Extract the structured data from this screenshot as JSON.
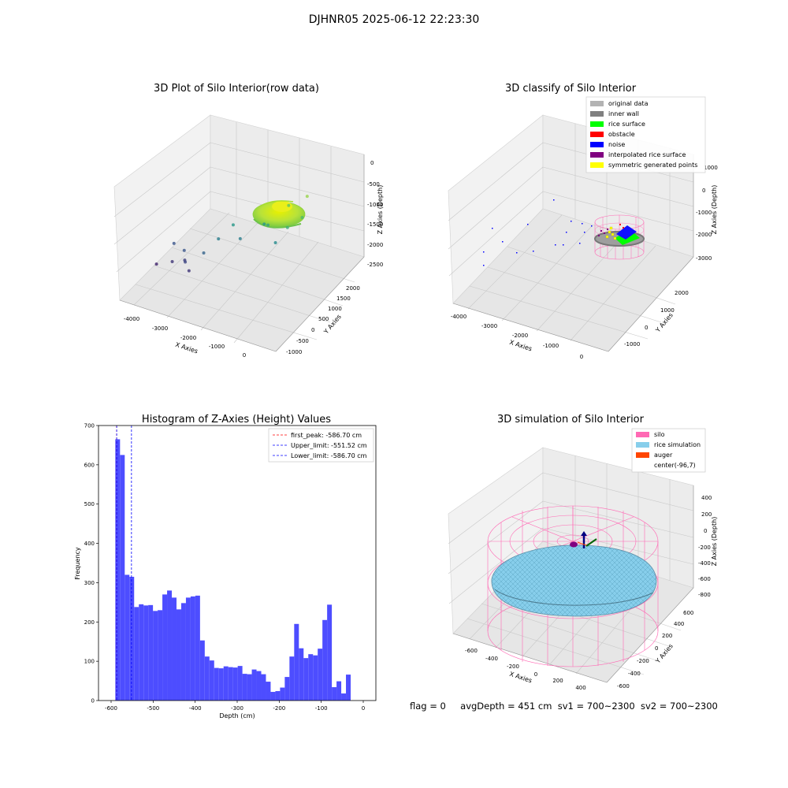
{
  "suptitle": "DJHNR05 2025-06-12 22:23:30",
  "footer": {
    "flag": "flag = 0",
    "avg_depth": "avgDepth = 451 cm",
    "sv1": "sv1 = 700~2300",
    "sv2": "sv2 = 700~2300"
  },
  "colors": {
    "hist_bar": "#4d4dff",
    "first_peak": "#ff0000",
    "limit_line": "#0000ff",
    "silo": "#ff69b4",
    "rice_sim": "#87ceeb",
    "auger": "#ff4500",
    "original": "#b3b3b3",
    "inner_wall": "#808080",
    "rice_surface": "#00ff00",
    "obstacle": "#ff0000",
    "noise": "#0000ff",
    "interpolated": "#800080",
    "symmetric": "#ffff00"
  },
  "chart_data": [
    {
      "type": "scatter",
      "title": "3D Plot of Silo Interior(row data)",
      "xlabel": "X Axies",
      "ylabel": "Y Axies",
      "zlabel": "Z Axies (Depth)",
      "x_ticks": [
        "-4000",
        "-3000",
        "-2000",
        "-1000",
        "0"
      ],
      "y_ticks": [
        "-1000",
        "-500",
        "0",
        "500",
        "1000",
        "1500",
        "2000"
      ],
      "z_ticks": [
        "0",
        "-500",
        "-1000",
        "-1500",
        "-2000",
        "-2500"
      ],
      "xlim": [
        -4300,
        500
      ],
      "ylim": [
        -1100,
        2200
      ],
      "zlim": [
        -2800,
        100
      ],
      "points": [
        {
          "x": -4100,
          "y": 0,
          "z": -2600
        },
        {
          "x": -3900,
          "y": 400,
          "z": -2300
        },
        {
          "x": -3700,
          "y": 100,
          "z": -2500
        },
        {
          "x": -3500,
          "y": 300,
          "z": -2300
        },
        {
          "x": -3400,
          "y": 200,
          "z": -2450
        },
        {
          "x": -3300,
          "y": 100,
          "z": -2400
        },
        {
          "x": -3100,
          "y": 0,
          "z": -2500
        },
        {
          "x": -2900,
          "y": 300,
          "z": -2200
        },
        {
          "x": -2700,
          "y": 600,
          "z": -2000
        },
        {
          "x": -2500,
          "y": 900,
          "z": -1800
        },
        {
          "x": -2200,
          "y": 800,
          "z": -2000
        },
        {
          "x": -1800,
          "y": 1200,
          "z": -1800
        },
        {
          "x": -1600,
          "y": 1100,
          "z": -1700
        },
        {
          "x": -1200,
          "y": 900,
          "z": -1900
        },
        {
          "x": -1000,
          "y": 1100,
          "z": -1600
        },
        {
          "x": -1300,
          "y": 1500,
          "z": -1400
        },
        {
          "x": -900,
          "y": 1700,
          "z": -1200
        },
        {
          "x": -800,
          "y": 1400,
          "z": -1500
        }
      ],
      "surface_z_range": [
        -1500,
        -900
      ]
    },
    {
      "type": "scatter",
      "title": "3D classify of Silo Interior",
      "xlabel": "X Axies",
      "ylabel": "Y Axies",
      "zlabel": "Z Axies (Depth)",
      "x_ticks": [
        "-4000",
        "-3000",
        "-2000",
        "-1000",
        "0"
      ],
      "y_ticks": [
        "-1000",
        "0",
        "1000",
        "2000"
      ],
      "z_ticks": [
        "1000",
        "0",
        "-1000",
        "-2000",
        "-3000"
      ],
      "legend": [
        "original data",
        "inner wall",
        "rice surface",
        "obstacle",
        "noise",
        "interpolated rice surface",
        "symmetric generated points"
      ],
      "legend_loc": "upper right"
    },
    {
      "type": "bar",
      "title": "Histogram of Z-Axies (Height) Values",
      "xlabel": "Depth (cm)",
      "ylabel": "Frequency",
      "xlim": [
        -630,
        30
      ],
      "ylim": [
        0,
        700
      ],
      "x_ticks": [
        "-600",
        "-500",
        "-400",
        "-300",
        "-200",
        "-100",
        "0"
      ],
      "y_ticks": [
        "0",
        "100",
        "200",
        "300",
        "400",
        "500",
        "600",
        "700"
      ],
      "bin_start": -590,
      "bin_width": 11.2,
      "values": [
        665,
        625,
        320,
        315,
        238,
        245,
        242,
        243,
        228,
        230,
        270,
        280,
        262,
        232,
        248,
        262,
        265,
        267,
        153,
        112,
        102,
        83,
        82,
        87,
        85,
        84,
        88,
        68,
        67,
        79,
        75,
        67,
        48,
        22,
        24,
        33,
        60,
        112,
        195,
        133,
        108,
        118,
        115,
        132,
        205,
        244,
        34,
        49,
        18,
        66
      ],
      "vlines": [
        {
          "label": "first_peak: -586.70 cm",
          "x": -586.7,
          "color": "#ff0000"
        },
        {
          "label": "Upper_limit: -551.52 cm",
          "x": -551.52,
          "color": "#0000ff"
        },
        {
          "label": "Lower_limit: -586.70 cm",
          "x": -586.7,
          "color": "#0000ff"
        }
      ],
      "legend_loc": "upper right"
    },
    {
      "type": "scatter",
      "title": "3D simulation of Silo Interior",
      "xlabel": "X Axies",
      "ylabel": "Y Axies",
      "zlabel": "Z Axies (Depth)",
      "x_ticks": [
        "-600",
        "-400",
        "-200",
        "0",
        "200",
        "400"
      ],
      "y_ticks": [
        "-600",
        "-400",
        "-200",
        "0",
        "200",
        "400",
        "600"
      ],
      "z_ticks": [
        "400",
        "200",
        "0",
        "-200",
        "-400",
        "-600",
        "-800"
      ],
      "legend": [
        "silo",
        "rice simulation",
        "auger",
        "center(-96,7)"
      ],
      "legend_loc": "upper right"
    }
  ]
}
